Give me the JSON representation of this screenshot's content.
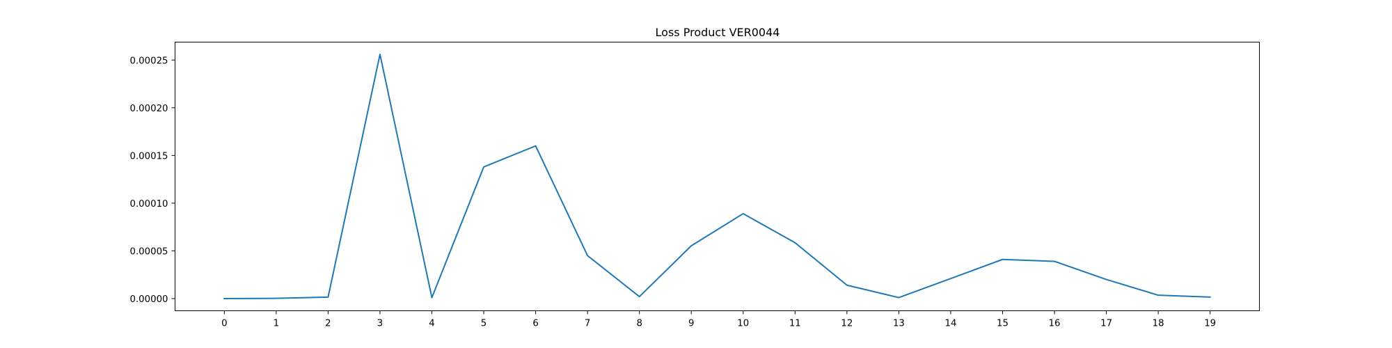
{
  "chart_data": {
    "type": "line",
    "title": "Loss Product VER0044",
    "xlabel": "",
    "ylabel": "",
    "x": [
      0,
      1,
      2,
      3,
      4,
      5,
      6,
      7,
      8,
      9,
      10,
      11,
      12,
      13,
      14,
      15,
      16,
      17,
      18,
      19
    ],
    "series": [
      {
        "values": [
          0.0,
          2e-07,
          1.5e-06,
          0.000256,
          1e-06,
          0.000138,
          0.00016,
          4.5e-05,
          2e-06,
          5.53e-05,
          8.9e-05,
          5.85e-05,
          1.4e-05,
          1e-06,
          2.1e-05,
          4.1e-05,
          3.9e-05,
          2e-05,
          3.5e-06,
          1.5e-06
        ],
        "color": "#1f77b4"
      }
    ],
    "xlim": [
      -0.95,
      19.95
    ],
    "ylim": [
      -1.28e-05,
      0.0002688
    ],
    "x_ticks": [
      0,
      1,
      2,
      3,
      4,
      5,
      6,
      7,
      8,
      9,
      10,
      11,
      12,
      13,
      14,
      15,
      16,
      17,
      18,
      19
    ],
    "x_tick_labels": [
      "0",
      "1",
      "2",
      "3",
      "4",
      "5",
      "6",
      "7",
      "8",
      "9",
      "10",
      "11",
      "12",
      "13",
      "14",
      "15",
      "16",
      "17",
      "18",
      "19"
    ],
    "y_ticks": [
      0,
      5e-05,
      0.0001,
      0.00015,
      0.0002,
      0.00025
    ],
    "y_tick_labels": [
      "0.00000",
      "0.00005",
      "0.00010",
      "0.00015",
      "0.00020",
      "0.00025"
    ],
    "grid": false,
    "legend": "none"
  }
}
